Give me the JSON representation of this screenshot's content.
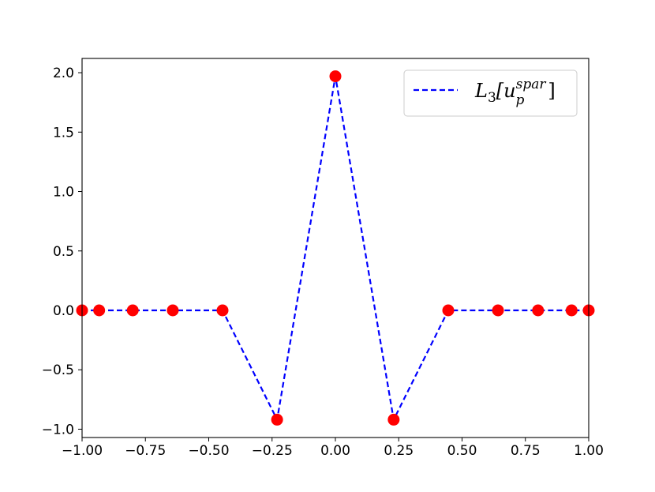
{
  "chart_data": {
    "type": "line",
    "title": "",
    "xlabel": "",
    "ylabel": "",
    "xlim": [
      -1.0,
      1.0
    ],
    "ylim": [
      -1.07,
      2.12
    ],
    "grid": false,
    "legend_position": "top-right",
    "x_ticks": [
      -1.0,
      -0.75,
      -0.5,
      -0.25,
      0.0,
      0.25,
      0.5,
      0.75,
      1.0
    ],
    "x_tick_labels": [
      "−1.00",
      "−0.75",
      "−0.50",
      "−0.25",
      "0.00",
      "0.25",
      "0.50",
      "0.75",
      "1.00"
    ],
    "y_ticks": [
      -1.0,
      -0.5,
      0.0,
      0.5,
      1.0,
      1.5,
      2.0
    ],
    "y_tick_labels": [
      "−1.0",
      "−0.5",
      "0.0",
      "0.5",
      "1.0",
      "1.5",
      "2.0"
    ],
    "series": [
      {
        "name": "L3[u_p^spar]",
        "legend_main": "L",
        "legend_sub": "3",
        "legend_open": "[u",
        "legend_sup": "spar",
        "legend_sub2": "p",
        "legend_close": "]",
        "color": "#0000ff",
        "marker_color": "#ff0000",
        "line_style": "dashed",
        "x": [
          -1.0,
          -0.9325,
          -0.8,
          -0.6419,
          -0.4455,
          -0.2301,
          0.0,
          0.2301,
          0.4455,
          0.6419,
          0.8,
          0.9325,
          1.0
        ],
        "y": [
          0.0,
          0.0,
          0.0,
          0.0,
          0.0,
          -0.92,
          1.97,
          -0.92,
          0.0,
          0.0,
          0.0,
          0.0,
          0.0
        ]
      }
    ]
  }
}
